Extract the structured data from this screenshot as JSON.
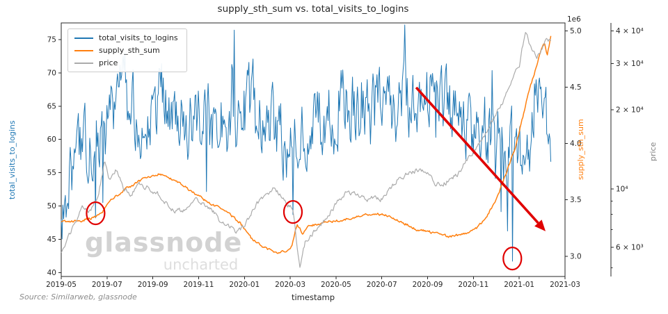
{
  "figure": {
    "source_note": "Source: Similarweb, glassnode",
    "watermark": {
      "line1": "glassnode",
      "line2": "uncharted"
    }
  },
  "chart_data": {
    "type": "line",
    "title": "supply_sth_sum vs. total_visits_to_logins",
    "xlabel": "timestamp",
    "x_domain": [
      0,
      22
    ],
    "x_ticks": [
      {
        "t": 0,
        "label": "2019-05"
      },
      {
        "t": 2,
        "label": "2019-07"
      },
      {
        "t": 4,
        "label": "2019-09"
      },
      {
        "t": 6,
        "label": "2019-11"
      },
      {
        "t": 8,
        "label": "2020-01"
      },
      {
        "t": 10,
        "label": "2020-03"
      },
      {
        "t": 12,
        "label": "2020-05"
      },
      {
        "t": 14,
        "label": "2020-07"
      },
      {
        "t": 16,
        "label": "2020-09"
      },
      {
        "t": 18,
        "label": "2020-11"
      },
      {
        "t": 20,
        "label": "2021-01"
      },
      {
        "t": 22,
        "label": "2021-03"
      }
    ],
    "axes": {
      "left": {
        "label": "total_visits_to_logins",
        "color": "#1f77b4",
        "range": [
          39.4,
          77.5
        ],
        "ticks": [
          40,
          45,
          50,
          55,
          60,
          65,
          70,
          75
        ]
      },
      "supply": {
        "label": "supply_sth_sum",
        "color": "#ff7f0e",
        "range": [
          2.82,
          5.07
        ],
        "ticks": [
          3.0,
          3.5,
          4.0,
          4.5,
          5.0
        ],
        "offset_text": "1e6",
        "unit_multiplier": 1000000
      },
      "price": {
        "label": "price",
        "color": "#808080",
        "scale": "log",
        "range": [
          4640,
          42900
        ],
        "ticks": [
          {
            "v": 6000,
            "label": "6 × 10³"
          },
          {
            "v": 10000,
            "label": "10⁴"
          },
          {
            "v": 20000,
            "label": "2 × 10⁴"
          },
          {
            "v": 30000,
            "label": "3 × 10⁴"
          },
          {
            "v": 40000,
            "label": "4 × 10⁴"
          }
        ],
        "minor_ticks": [
          5000,
          7000,
          8000,
          9000
        ]
      }
    },
    "series": [
      {
        "name": "total_visits_to_logins",
        "color": "#1f77b4",
        "axis": "left",
        "width": 1.0,
        "samples": 600,
        "noise": 3.1,
        "ar": 0.55,
        "noise_gain": 1.5,
        "spike_prob": 0.05,
        "spike_min": 3,
        "spike_max": 9,
        "spike_down_bias": 0.62,
        "clamp": [
          41.6,
          77.2
        ],
        "keypoints": [
          [
            0,
            48
          ],
          [
            0.2,
            53
          ],
          [
            0.5,
            57
          ],
          [
            0.9,
            59
          ],
          [
            1.3,
            61
          ],
          [
            1.8,
            60
          ],
          [
            2.3,
            65
          ],
          [
            2.8,
            66
          ],
          [
            3.3,
            64
          ],
          [
            3.8,
            65
          ],
          [
            4.3,
            66
          ],
          [
            4.8,
            64
          ],
          [
            5.3,
            63
          ],
          [
            5.8,
            64
          ],
          [
            6.3,
            62
          ],
          [
            6.8,
            63
          ],
          [
            7.3,
            64
          ],
          [
            7.8,
            64
          ],
          [
            8.3,
            65
          ],
          [
            8.8,
            63
          ],
          [
            9.3,
            62
          ],
          [
            9.8,
            61
          ],
          [
            10.4,
            60
          ],
          [
            10.9,
            62
          ],
          [
            11.4,
            63
          ],
          [
            11.9,
            64
          ],
          [
            12.4,
            65
          ],
          [
            12.9,
            64
          ],
          [
            13.4,
            63
          ],
          [
            13.9,
            64
          ],
          [
            14.4,
            65
          ],
          [
            14.9,
            66
          ],
          [
            15.4,
            67
          ],
          [
            15.9,
            67
          ],
          [
            16.4,
            66
          ],
          [
            16.9,
            64
          ],
          [
            17.4,
            62
          ],
          [
            17.9,
            61
          ],
          [
            18.2,
            62
          ],
          [
            18.45,
            55
          ],
          [
            18.7,
            63
          ],
          [
            18.95,
            54
          ],
          [
            19.2,
            62
          ],
          [
            19.45,
            53
          ],
          [
            19.7,
            60
          ],
          [
            19.95,
            55
          ],
          [
            20.2,
            57
          ],
          [
            20.45,
            60
          ],
          [
            20.7,
            64
          ],
          [
            20.95,
            67
          ],
          [
            21.1,
            64
          ],
          [
            21.25,
            58
          ],
          [
            21.38,
            57
          ]
        ],
        "dips": [
          [
            1.5,
            48.2
          ],
          [
            10.12,
            48.7
          ],
          [
            19.7,
            41.7
          ]
        ]
      },
      {
        "name": "supply_sth_sum",
        "color": "#ff7f0e",
        "axis": "supply",
        "width": 1.5,
        "samples": 560,
        "noise": 0.01,
        "ar": 0.5,
        "noise_gain": 1.0,
        "keypoints": [
          [
            0,
            3.3
          ],
          [
            0.6,
            3.31
          ],
          [
            1.2,
            3.33
          ],
          [
            1.7,
            3.37
          ],
          [
            2.2,
            3.5
          ],
          [
            2.7,
            3.58
          ],
          [
            3.2,
            3.64
          ],
          [
            3.7,
            3.7
          ],
          [
            4.3,
            3.73
          ],
          [
            4.8,
            3.69
          ],
          [
            5.4,
            3.62
          ],
          [
            6.0,
            3.53
          ],
          [
            6.6,
            3.46
          ],
          [
            7.2,
            3.4
          ],
          [
            7.8,
            3.3
          ],
          [
            8.3,
            3.16
          ],
          [
            8.8,
            3.08
          ],
          [
            9.4,
            3.03
          ],
          [
            9.8,
            3.05
          ],
          [
            10.05,
            3.08
          ],
          [
            10.3,
            3.28
          ],
          [
            10.55,
            3.2
          ],
          [
            10.85,
            3.27
          ],
          [
            11.5,
            3.3
          ],
          [
            12.2,
            3.32
          ],
          [
            13.0,
            3.36
          ],
          [
            13.6,
            3.38
          ],
          [
            14.2,
            3.36
          ],
          [
            14.8,
            3.31
          ],
          [
            15.5,
            3.24
          ],
          [
            16.2,
            3.21
          ],
          [
            17.0,
            3.17
          ],
          [
            17.6,
            3.2
          ],
          [
            18.1,
            3.24
          ],
          [
            18.5,
            3.33
          ],
          [
            19.0,
            3.5
          ],
          [
            19.4,
            3.72
          ],
          [
            19.8,
            3.95
          ],
          [
            20.1,
            4.18
          ],
          [
            20.4,
            4.45
          ],
          [
            20.7,
            4.65
          ],
          [
            20.95,
            4.82
          ],
          [
            21.1,
            4.9
          ],
          [
            21.22,
            4.78
          ],
          [
            21.38,
            4.96
          ]
        ]
      },
      {
        "name": "price",
        "color": "#ababab",
        "axis": "price",
        "width": 1.2,
        "log": true,
        "samples": 560,
        "noise": 0.008,
        "ar": 0.6,
        "noise_gain": 1.0,
        "keypoints": [
          [
            0,
            5800
          ],
          [
            0.5,
            7100
          ],
          [
            0.9,
            8600
          ],
          [
            1.2,
            8100
          ],
          [
            1.6,
            9300
          ],
          [
            1.9,
            12900
          ],
          [
            2.1,
            10900
          ],
          [
            2.4,
            11900
          ],
          [
            2.7,
            10100
          ],
          [
            3.0,
            9600
          ],
          [
            3.4,
            10350
          ],
          [
            3.8,
            10100
          ],
          [
            4.2,
            9700
          ],
          [
            4.8,
            8300
          ],
          [
            5.3,
            8250
          ],
          [
            5.8,
            9300
          ],
          [
            6.1,
            8800
          ],
          [
            6.5,
            8500
          ],
          [
            7.0,
            7450
          ],
          [
            7.5,
            7150
          ],
          [
            7.7,
            6850
          ],
          [
            8.0,
            7200
          ],
          [
            8.5,
            8750
          ],
          [
            9.0,
            9350
          ],
          [
            9.35,
            10150
          ],
          [
            9.8,
            8800
          ],
          [
            10.1,
            8500
          ],
          [
            10.42,
            4950
          ],
          [
            10.65,
            6250
          ],
          [
            11.0,
            6850
          ],
          [
            11.5,
            7600
          ],
          [
            12.0,
            8750
          ],
          [
            12.4,
            9550
          ],
          [
            13.0,
            9450
          ],
          [
            13.5,
            9150
          ],
          [
            14.0,
            9150
          ],
          [
            14.7,
            10900
          ],
          [
            15.1,
            11400
          ],
          [
            15.6,
            11900
          ],
          [
            16.0,
            11650
          ],
          [
            16.35,
            10350
          ],
          [
            16.8,
            10650
          ],
          [
            17.3,
            11400
          ],
          [
            17.9,
            13550
          ],
          [
            18.4,
            15600
          ],
          [
            18.9,
            18500
          ],
          [
            19.3,
            21500
          ],
          [
            19.7,
            26500
          ],
          [
            20.0,
            29000
          ],
          [
            20.27,
            40000
          ],
          [
            20.5,
            34500
          ],
          [
            20.75,
            31800
          ],
          [
            21.0,
            34500
          ],
          [
            21.2,
            38500
          ],
          [
            21.38,
            36500
          ]
        ]
      }
    ],
    "legend_position": "upper-left",
    "grid": false,
    "annotations": {
      "color": "#e00000",
      "arrow": {
        "from_t": 15.5,
        "from_v": 67.8,
        "to_t": 21.15,
        "to_v": 46.2
      },
      "circles": [
        {
          "t": 1.5,
          "v": 48.9
        },
        {
          "t": 10.12,
          "v": 49.1
        },
        {
          "t": 19.7,
          "v": 42.1
        }
      ]
    }
  }
}
